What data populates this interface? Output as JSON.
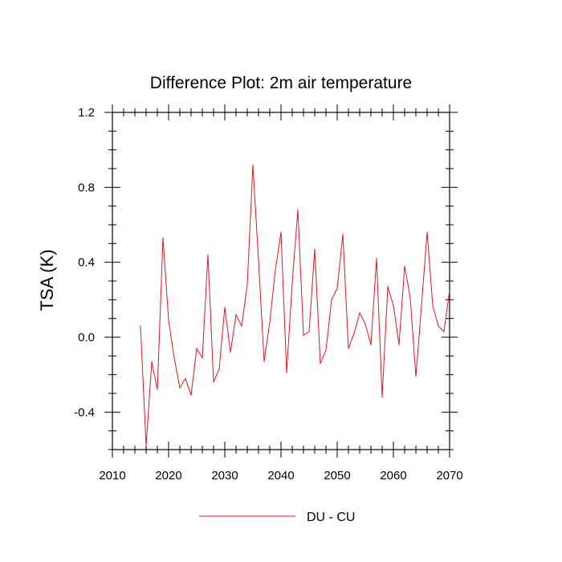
{
  "chart_data": {
    "type": "line",
    "title": "Difference Plot: 2m air temperature",
    "xlabel": "",
    "ylabel": "TSA  (K)",
    "xlim": [
      2010,
      2070
    ],
    "ylim": [
      -0.6,
      1.2
    ],
    "x_ticks": [
      2010,
      2020,
      2030,
      2040,
      2050,
      2060,
      2070
    ],
    "x_tick_labels": [
      "2010",
      "2020",
      "2030",
      "2040",
      "2050",
      "2060",
      "2070"
    ],
    "y_ticks": [
      -0.4,
      0.0,
      0.4,
      0.8,
      1.2
    ],
    "y_tick_labels": [
      "-0.4",
      "0.0",
      "0.4",
      "0.8",
      "1.2"
    ],
    "grid": false,
    "legend_position": "bottom-center",
    "series": [
      {
        "name": "DU - CU",
        "color": "#e8141c",
        "x": [
          2015,
          2016,
          2017,
          2018,
          2019,
          2020,
          2021,
          2022,
          2023,
          2024,
          2025,
          2026,
          2027,
          2028,
          2029,
          2030,
          2031,
          2032,
          2033,
          2034,
          2035,
          2036,
          2037,
          2038,
          2039,
          2040,
          2041,
          2042,
          2043,
          2044,
          2045,
          2046,
          2047,
          2048,
          2049,
          2050,
          2051,
          2052,
          2053,
          2054,
          2055,
          2056,
          2057,
          2058,
          2059,
          2060,
          2061,
          2062,
          2063,
          2064,
          2065,
          2066,
          2067,
          2068,
          2069,
          2070
        ],
        "values": [
          0.06,
          -0.58,
          -0.13,
          -0.28,
          0.53,
          0.09,
          -0.11,
          -0.27,
          -0.22,
          -0.31,
          -0.06,
          -0.11,
          0.44,
          -0.24,
          -0.17,
          0.16,
          -0.08,
          0.12,
          0.06,
          0.28,
          0.92,
          0.41,
          -0.13,
          0.08,
          0.36,
          0.56,
          -0.19,
          0.29,
          0.68,
          0.01,
          0.03,
          0.47,
          -0.14,
          -0.07,
          0.2,
          0.26,
          0.55,
          -0.06,
          0.02,
          0.13,
          0.07,
          -0.04,
          0.42,
          -0.32,
          0.27,
          0.17,
          -0.04,
          0.38,
          0.21,
          -0.21,
          0.17,
          0.56,
          0.17,
          0.06,
          0.03,
          0.25
        ]
      }
    ]
  }
}
